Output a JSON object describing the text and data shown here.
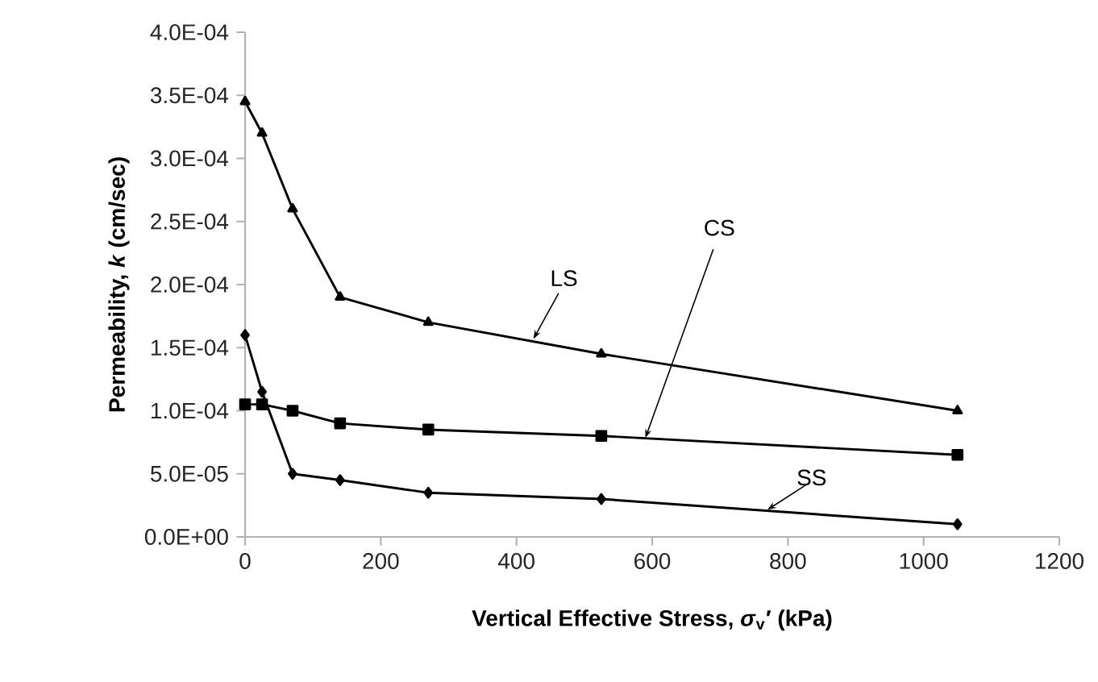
{
  "chart_data": {
    "type": "line",
    "xlabel": "Vertical Effective Stress, *σ*$_{v}$′ (kPa)",
    "ylabel": "Permeability, *k* (cm/sec)",
    "xlim": [
      0,
      1200
    ],
    "xticks": [
      0,
      200,
      400,
      600,
      800,
      1000,
      1200
    ],
    "ylim": [
      0,
      0.0004
    ],
    "yticks": [
      {
        "value": 0,
        "label": "0.0E+00"
      },
      {
        "value": 5e-05,
        "label": "5.0E-05"
      },
      {
        "value": 0.0001,
        "label": "1.0E-04"
      },
      {
        "value": 0.00015,
        "label": "1.5E-04"
      },
      {
        "value": 0.0002,
        "label": "2.0E-04"
      },
      {
        "value": 0.00025,
        "label": "2.5E-04"
      },
      {
        "value": 0.0003,
        "label": "3.0E-04"
      },
      {
        "value": 0.00035,
        "label": "3.5E-04"
      },
      {
        "value": 0.0004,
        "label": "4.0E-04"
      }
    ],
    "x": [
      0,
      25,
      70,
      140,
      270,
      525,
      1050
    ],
    "grid": false,
    "legend": false,
    "line_style": "solid",
    "series": [
      {
        "name": "LS",
        "color": "#000000",
        "marker": "triangle",
        "values": [
          0.000345,
          0.00032,
          0.00026,
          0.00019,
          0.00017,
          0.000145,
          0.0001
        ]
      },
      {
        "name": "CS",
        "color": "#000000",
        "marker": "square",
        "values": [
          0.000105,
          0.000105,
          0.0001,
          9e-05,
          8.5e-05,
          8e-05,
          6.5e-05
        ]
      },
      {
        "name": "SS",
        "color": "#000000",
        "marker": "diamond",
        "values": [
          0.00016,
          0.000115,
          5e-05,
          4.5e-05,
          3.5e-05,
          3e-05,
          1e-05
        ]
      }
    ]
  }
}
